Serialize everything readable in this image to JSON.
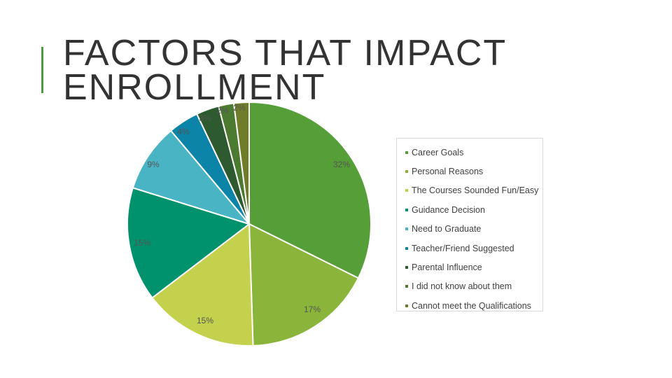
{
  "slide": {
    "title": "FACTORS THAT IMPACT ENROLLMENT"
  },
  "chart_data": {
    "type": "pie",
    "title": "",
    "start_angle_deg": 0,
    "direction": "clockwise",
    "legend_position": "right",
    "slices": [
      {
        "name": "Career Goals",
        "value": 32,
        "label": "32%",
        "color": "#559e38"
      },
      {
        "name": "Personal Reasons",
        "value": 17,
        "label": "17%",
        "color": "#8ab53a"
      },
      {
        "name": "The Courses Sounded Fun/Easy",
        "value": 15,
        "label": "15%",
        "color": "#c3d14c"
      },
      {
        "name": "Guidance Decision",
        "value": 15,
        "label": "15%",
        "color": "#00916d"
      },
      {
        "name": "Need to Graduate",
        "value": 9,
        "label": "9%",
        "color": "#49b4c4"
      },
      {
        "name": "Teacher/Friend Suggested",
        "value": 4,
        "label": "4%",
        "color": "#0b84a8"
      },
      {
        "name": "Parental Influence",
        "value": 3,
        "label": "3%",
        "color": "#2d5a2e"
      },
      {
        "name": "I did not know about them",
        "value": 2,
        "label": "2%",
        "color": "#4d7a31"
      },
      {
        "name": "Cannot meet the Qualifications",
        "value": 2,
        "label": "2%",
        "color": "#6f7d2b"
      }
    ]
  }
}
